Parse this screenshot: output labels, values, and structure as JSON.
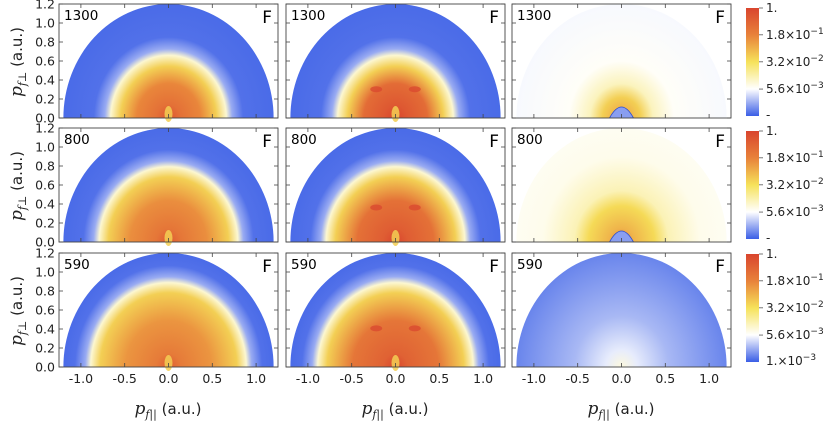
{
  "chart_data": {
    "type": "heatmap",
    "description_type": "grid of 3x3 semicircular momentum-distribution heatmaps",
    "xlabel": "p_f|| (a.u.)",
    "xlabel_main": "p",
    "xlabel_sub": "f||",
    "xlabel_unit": " (a.u.)",
    "ylabel": "p_f⊥ (a.u.)",
    "ylabel_main": "p",
    "ylabel_sub": "f⊥",
    "ylabel_unit": " (a.u.)",
    "xlim": [
      -1.25,
      1.25
    ],
    "ylim": [
      0.0,
      1.2
    ],
    "x_ticks": [
      "-1.0",
      "-0.5",
      "0.0",
      "0.5",
      "1.0"
    ],
    "x_tick_values": [
      -1.0,
      -0.5,
      0.0,
      0.5,
      1.0
    ],
    "y_ticks": [
      "0.0",
      "0.2",
      "0.4",
      "0.6",
      "0.8",
      "1.0",
      "1.2"
    ],
    "y_tick_values": [
      0.0,
      0.2,
      0.4,
      0.6,
      0.8,
      1.0,
      1.2
    ],
    "radius": 1.2,
    "colorbar": {
      "scale": "log",
      "range": [
        0.001,
        1.0
      ],
      "ticks": [
        {
          "value": 1.0,
          "mant": "1.",
          "exp": ""
        },
        {
          "value": 0.18,
          "mant": "1.8×10",
          "exp": "−1"
        },
        {
          "value": 0.032,
          "mant": "3.2×10",
          "exp": "−2"
        },
        {
          "value": 0.0056,
          "mant": "5.6×10",
          "exp": "−3"
        }
      ],
      "bottom_label_last": {
        "value": 0.001,
        "mant": "1.×10",
        "exp": "−3"
      },
      "bottom_label_short": "-",
      "colors": [
        "#3a5ee6",
        "#ffffff",
        "#f6e25a",
        "#e8823a",
        "#d9452e"
      ]
    },
    "rows": [
      {
        "label": "1300",
        "panels": [
          {
            "tag": "F",
            "mode": "full",
            "boundary": 0.55,
            "width": 0.16,
            "peak": 0.82
          },
          {
            "tag": "F",
            "mode": "full2",
            "boundary": 0.55,
            "width": 0.16,
            "peak": 0.92
          },
          {
            "tag": "F",
            "mode": "diff",
            "boundary": 0.3,
            "width": 0.2,
            "peak": 0.7
          }
        ]
      },
      {
        "label": "800",
        "panels": [
          {
            "tag": "F",
            "mode": "full",
            "boundary": 0.66,
            "width": 0.15,
            "peak": 0.8
          },
          {
            "tag": "F",
            "mode": "full2",
            "boundary": 0.66,
            "width": 0.15,
            "peak": 0.9
          },
          {
            "tag": "F",
            "mode": "diffwide",
            "boundary": 0.45,
            "width": 0.3,
            "peak": 0.7
          }
        ]
      },
      {
        "label": "590",
        "panels": [
          {
            "tag": "F",
            "mode": "full",
            "boundary": 0.74,
            "width": 0.15,
            "peak": 0.78
          },
          {
            "tag": "F",
            "mode": "full2",
            "boundary": 0.74,
            "width": 0.15,
            "peak": 0.88
          },
          {
            "tag": "F",
            "mode": "bluefade",
            "boundary": 0.2,
            "width": 0.3,
            "peak": 0.2
          }
        ]
      }
    ]
  }
}
